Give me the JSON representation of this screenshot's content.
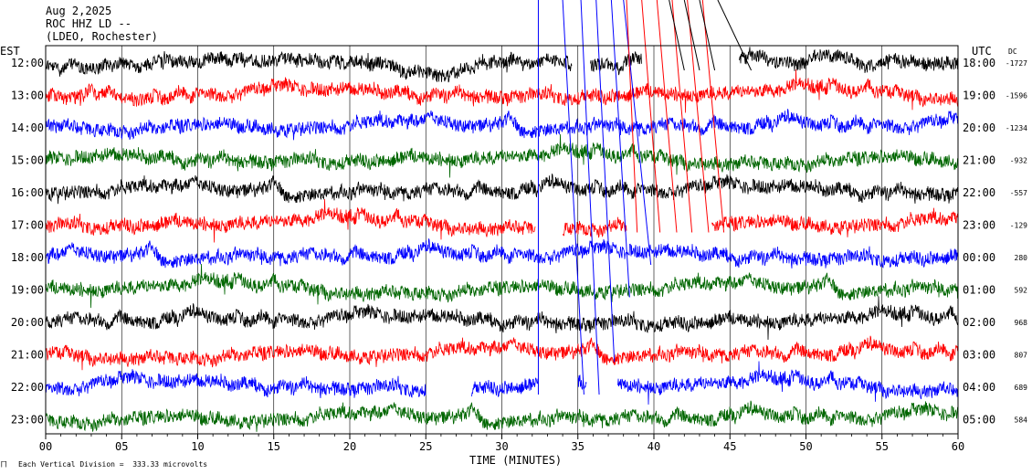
{
  "header": {
    "date": "Aug 2,2025",
    "station": "ROC HHZ LD --",
    "network": "(LDEO, Rochester)"
  },
  "labels": {
    "left_tz": "EST",
    "right_tz": "UTC",
    "dc": "DC",
    "xlabel": "TIME (MINUTES)",
    "footer": "Each Vertical Division =  333.33 microvolts"
  },
  "chart_data": {
    "type": "line",
    "title": "",
    "xlabel": "TIME (MINUTES)",
    "ylabel": "",
    "xlim": [
      0,
      60
    ],
    "x_ticks": [
      "00",
      "05",
      "10",
      "15",
      "20",
      "25",
      "30",
      "35",
      "40",
      "45",
      "50",
      "55",
      "60"
    ],
    "trace_colors": [
      "#000000",
      "#ff0000",
      "#0000ff",
      "#006600"
    ],
    "rows": [
      {
        "est": "12:00",
        "utc": "18:00",
        "dc": "-1727",
        "color": "#000000",
        "gaps": [
          [
            34.6,
            35.8
          ],
          [
            39.2,
            45.6
          ]
        ]
      },
      {
        "est": "13:00",
        "utc": "19:00",
        "dc": "-1596",
        "color": "#ff0000",
        "gaps": []
      },
      {
        "est": "14:00",
        "utc": "20:00",
        "dc": "-1234",
        "color": "#0000ff",
        "gaps": []
      },
      {
        "est": "15:00",
        "utc": "21:00",
        "dc": "-932",
        "color": "#006600",
        "gaps": []
      },
      {
        "est": "16:00",
        "utc": "22:00",
        "dc": "-557",
        "color": "#000000",
        "gaps": []
      },
      {
        "est": "17:00",
        "utc": "23:00",
        "dc": "-129",
        "color": "#ff0000",
        "gaps": [
          [
            32.2,
            34.0
          ],
          [
            38.2,
            43.8
          ]
        ]
      },
      {
        "est": "18:00",
        "utc": "00:00",
        "dc": "280",
        "color": "#0000ff",
        "gaps": []
      },
      {
        "est": "19:00",
        "utc": "01:00",
        "dc": "592",
        "color": "#006600",
        "gaps": []
      },
      {
        "est": "20:00",
        "utc": "02:00",
        "dc": "968",
        "color": "#000000",
        "gaps": []
      },
      {
        "est": "21:00",
        "utc": "03:00",
        "dc": "807",
        "color": "#ff0000",
        "gaps": []
      },
      {
        "est": "22:00",
        "utc": "04:00",
        "dc": "689",
        "color": "#0000ff",
        "gaps": [
          [
            25.0,
            28.0
          ],
          [
            32.4,
            35.0
          ],
          [
            35.6,
            37.6
          ]
        ]
      },
      {
        "est": "23:00",
        "utc": "05:00",
        "dc": "584",
        "color": "#006600",
        "gaps": []
      }
    ],
    "event_lines": [
      {
        "color": "#0000ff",
        "top_x": 32.4,
        "bottom_x": 32.4,
        "end_row": 10
      },
      {
        "color": "#0000ff",
        "top_x": 34.0,
        "bottom_x": 35.4,
        "end_row": 10
      },
      {
        "color": "#0000ff",
        "top_x": 35.2,
        "bottom_x": 36.4,
        "end_row": 10
      },
      {
        "color": "#0000ff",
        "top_x": 36.2,
        "bottom_x": 37.4,
        "end_row": 9
      },
      {
        "color": "#0000ff",
        "top_x": 37.2,
        "bottom_x": 38.4,
        "end_row": 7
      },
      {
        "color": "#0000ff",
        "top_x": 38.0,
        "bottom_x": 39.8,
        "end_row": 6
      },
      {
        "color": "#ff0000",
        "top_x": 38.2,
        "bottom_x": 38.9,
        "end_row": 5
      },
      {
        "color": "#ff0000",
        "top_x": 39.2,
        "bottom_x": 40.4,
        "end_row": 5
      },
      {
        "color": "#ff0000",
        "top_x": 40.2,
        "bottom_x": 41.5,
        "end_row": 5
      },
      {
        "color": "#ff0000",
        "top_x": 41.2,
        "bottom_x": 42.5,
        "end_row": 5
      },
      {
        "color": "#ff0000",
        "top_x": 42.2,
        "bottom_x": 43.6,
        "end_row": 5
      },
      {
        "color": "#ff0000",
        "top_x": 43.2,
        "bottom_x": 44.6,
        "end_row": 5
      },
      {
        "color": "#000000",
        "top_x": 41.0,
        "bottom_x": 42.0,
        "end_row": 0
      },
      {
        "color": "#000000",
        "top_x": 42.0,
        "bottom_x": 43.0,
        "end_row": 0
      },
      {
        "color": "#000000",
        "top_x": 43.0,
        "bottom_x": 44.0,
        "end_row": 0
      },
      {
        "color": "#000000",
        "top_x": 44.2,
        "bottom_x": 46.4,
        "end_row": 0
      }
    ]
  }
}
